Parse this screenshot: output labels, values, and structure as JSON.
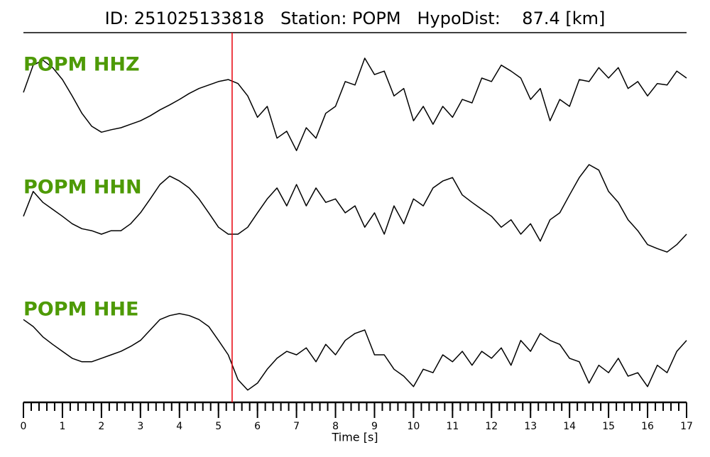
{
  "chart_data": {
    "type": "line",
    "title": "ID: 251025133818   Station: POPM   HypoDist:    87.4 [km]",
    "x_label": "Time [s]",
    "x": [
      0,
      0.25,
      0.5,
      0.75,
      1,
      1.25,
      1.5,
      1.75,
      2,
      2.25,
      2.5,
      2.75,
      3,
      3.25,
      3.5,
      3.75,
      4,
      4.25,
      4.5,
      4.75,
      5,
      5.25,
      5.5,
      5.75,
      6,
      6.25,
      6.5,
      6.75,
      7,
      7.25,
      7.5,
      7.75,
      8,
      8.25,
      8.5,
      8.75,
      9,
      9.25,
      9.5,
      9.75,
      10,
      10.25,
      10.5,
      10.75,
      11,
      11.25,
      11.5,
      11.75,
      12,
      12.25,
      12.5,
      12.75,
      13,
      13.25,
      13.5,
      13.75,
      14,
      14.25,
      14.5,
      14.75,
      15,
      15.25,
      15.5,
      15.75,
      16,
      16.25,
      16.5,
      16.75,
      17
    ],
    "series": [
      {
        "name": "POPM HHZ",
        "color": "#000000",
        "values": [
          0.21,
          0.76,
          0.86,
          0.71,
          0.47,
          0.14,
          -0.21,
          -0.47,
          -0.59,
          -0.54,
          -0.5,
          -0.43,
          -0.36,
          -0.26,
          -0.14,
          -0.04,
          0.07,
          0.19,
          0.29,
          0.36,
          0.43,
          0.47,
          0.39,
          0.14,
          -0.29,
          -0.07,
          -0.71,
          -0.57,
          -0.96,
          -0.5,
          -0.71,
          -0.21,
          -0.07,
          0.43,
          0.36,
          0.9,
          0.57,
          0.64,
          0.14,
          0.29,
          -0.36,
          -0.07,
          -0.43,
          -0.07,
          -0.29,
          0.07,
          0,
          0.5,
          0.43,
          0.76,
          0.64,
          0.5,
          0.07,
          0.29,
          -0.36,
          0.07,
          -0.07,
          0.47,
          0.43,
          0.71,
          0.5,
          0.71,
          0.29,
          0.43,
          0.14,
          0.39,
          0.36,
          0.64,
          0.5
        ]
      },
      {
        "name": "POPM HHN",
        "color": "#000000",
        "values": [
          -0.14,
          0.36,
          0.14,
          0,
          -0.14,
          -0.29,
          -0.39,
          -0.43,
          -0.5,
          -0.43,
          -0.43,
          -0.29,
          -0.07,
          0.21,
          0.5,
          0.67,
          0.57,
          0.43,
          0.21,
          -0.07,
          -0.36,
          -0.5,
          -0.5,
          -0.36,
          -0.07,
          0.21,
          0.43,
          0.07,
          0.5,
          0.07,
          0.43,
          0.14,
          0.21,
          -0.07,
          0.07,
          -0.36,
          -0.07,
          -0.5,
          0.07,
          -0.29,
          0.21,
          0.07,
          0.43,
          0.57,
          0.64,
          0.29,
          0.14,
          0,
          -0.14,
          -0.36,
          -0.21,
          -0.5,
          -0.29,
          -0.64,
          -0.21,
          -0.07,
          0.29,
          0.64,
          0.9,
          0.79,
          0.36,
          0.14,
          -0.21,
          -0.43,
          -0.71,
          -0.79,
          -0.86,
          -0.71,
          -0.5
        ]
      },
      {
        "name": "POPM HHE",
        "color": "#000000",
        "values": [
          0.71,
          0.57,
          0.36,
          0.21,
          0.07,
          -0.07,
          -0.14,
          -0.14,
          -0.07,
          0,
          0.07,
          0.17,
          0.29,
          0.5,
          0.71,
          0.79,
          0.83,
          0.79,
          0.71,
          0.57,
          0.29,
          0,
          -0.5,
          -0.71,
          -0.57,
          -0.29,
          -0.07,
          0.07,
          0,
          0.14,
          -0.14,
          0.21,
          0,
          0.29,
          0.43,
          0.5,
          0,
          0,
          -0.29,
          -0.43,
          -0.64,
          -0.29,
          -0.36,
          0,
          -0.14,
          0.07,
          -0.21,
          0.07,
          -0.07,
          0.14,
          -0.21,
          0.29,
          0.07,
          0.43,
          0.29,
          0.21,
          -0.07,
          -0.14,
          -0.57,
          -0.21,
          -0.36,
          -0.07,
          -0.43,
          -0.36,
          -0.64,
          -0.21,
          -0.36,
          0.07,
          0.29
        ]
      }
    ],
    "label_color": "#4e9a06",
    "pick_time": 5.35,
    "pick_color": "#e8000b",
    "xlim": [
      0,
      17
    ],
    "xticks": [
      0,
      1,
      2,
      3,
      4,
      5,
      6,
      7,
      8,
      9,
      10,
      11,
      12,
      13,
      14,
      15,
      16,
      17
    ],
    "xminor_step": 0.2,
    "ylim": [
      -1,
      1
    ]
  }
}
